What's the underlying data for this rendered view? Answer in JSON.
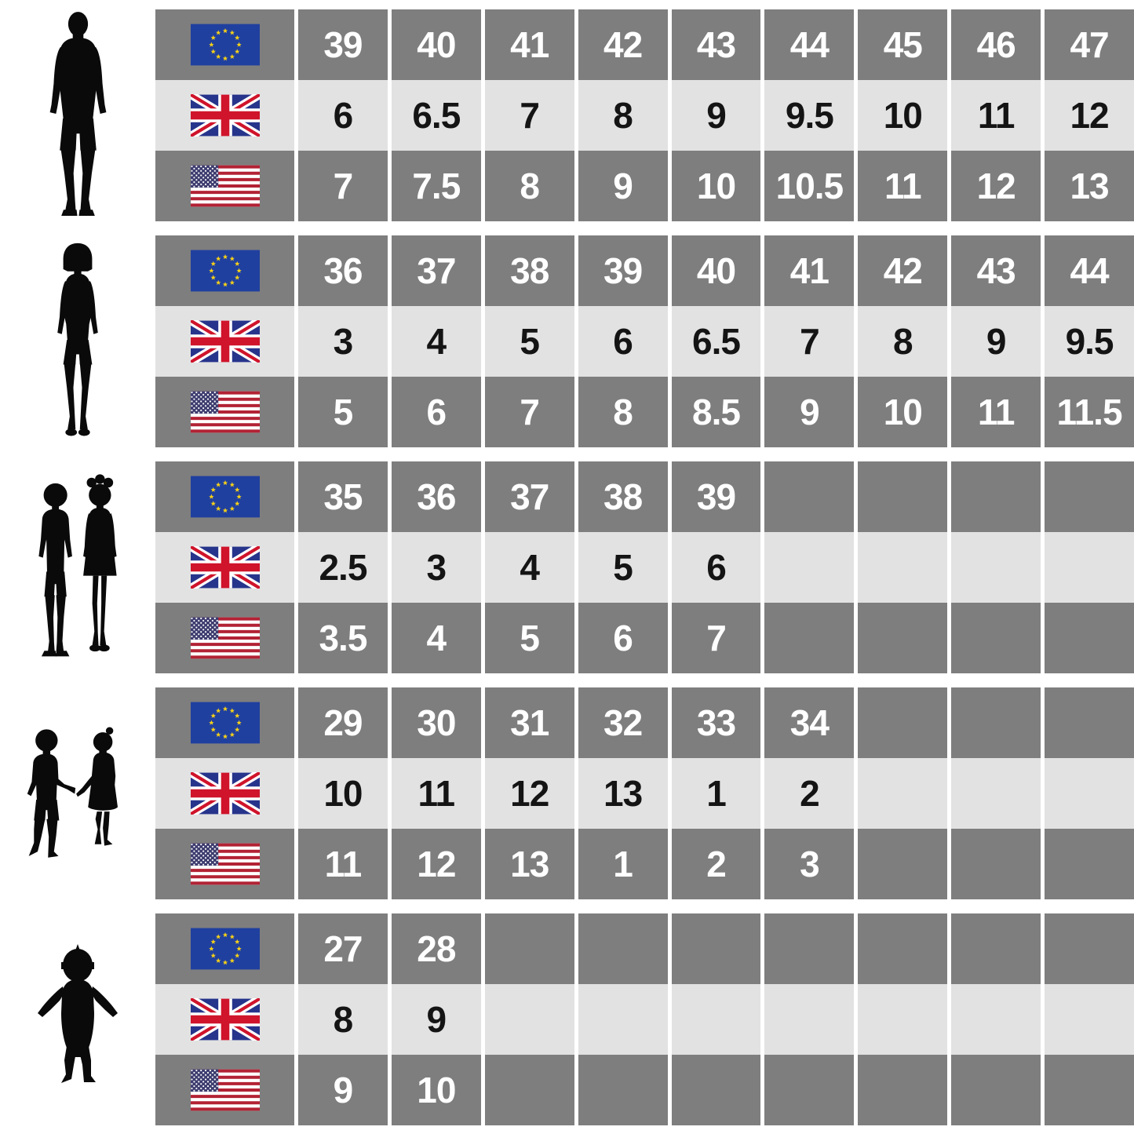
{
  "colors": {
    "background": "#ffffff",
    "cell_dark": "#7e7e7e",
    "cell_light": "#e2e2e2",
    "text_on_dark": "#ffffff",
    "text_on_light": "#141414",
    "silhouette": "#0a0a0a",
    "eu_flag_blue": "#20409f",
    "eu_flag_star_gold": "#f7d117",
    "uk_flag_blue": "#26348b",
    "uk_flag_red": "#cf142b",
    "us_flag_blue": "#3c3b6e",
    "us_flag_red": "#b22234"
  },
  "chart_data": {
    "type": "table",
    "description": "Shoe size conversion chart: EU / UK / US sizes for five age-gender groups, each group marked by a black silhouette figure and rows marked by EU, UK and US flag icons.",
    "tables": [
      {
        "group": "men",
        "figure": "man-silhouette",
        "rows": [
          {
            "region": "EU",
            "flag": "eu-flag-icon",
            "shade": "dark",
            "values": [
              "39",
              "40",
              "41",
              "42",
              "43",
              "44",
              "45",
              "46",
              "47"
            ]
          },
          {
            "region": "UK",
            "flag": "uk-flag-icon",
            "shade": "light",
            "values": [
              "6",
              "6.5",
              "7",
              "8",
              "9",
              "9.5",
              "10",
              "11",
              "12"
            ]
          },
          {
            "region": "US",
            "flag": "us-flag-icon",
            "shade": "dark",
            "values": [
              "7",
              "7.5",
              "8",
              "9",
              "10",
              "10.5",
              "11",
              "12",
              "13"
            ]
          }
        ]
      },
      {
        "group": "women",
        "figure": "woman-silhouette",
        "rows": [
          {
            "region": "EU",
            "flag": "eu-flag-icon",
            "shade": "dark",
            "values": [
              "36",
              "37",
              "38",
              "39",
              "40",
              "41",
              "42",
              "43",
              "44"
            ]
          },
          {
            "region": "UK",
            "flag": "uk-flag-icon",
            "shade": "light",
            "values": [
              "3",
              "4",
              "5",
              "6",
              "6.5",
              "7",
              "8",
              "9",
              "9.5"
            ]
          },
          {
            "region": "US",
            "flag": "us-flag-icon",
            "shade": "dark",
            "values": [
              "5",
              "6",
              "7",
              "8",
              "8.5",
              "9",
              "10",
              "11",
              "11.5"
            ]
          }
        ]
      },
      {
        "group": "kids",
        "figure": "kids-pair-silhouette",
        "rows": [
          {
            "region": "EU",
            "flag": "eu-flag-icon",
            "shade": "dark",
            "values": [
              "35",
              "36",
              "37",
              "38",
              "39",
              "",
              "",
              "",
              ""
            ]
          },
          {
            "region": "UK",
            "flag": "uk-flag-icon",
            "shade": "light",
            "values": [
              "2.5",
              "3",
              "4",
              "5",
              "6",
              "",
              "",
              "",
              ""
            ]
          },
          {
            "region": "US",
            "flag": "us-flag-icon",
            "shade": "dark",
            "values": [
              "3.5",
              "4",
              "5",
              "6",
              "7",
              "",
              "",
              "",
              ""
            ]
          }
        ]
      },
      {
        "group": "children",
        "figure": "children-holding-hands-silhouette",
        "rows": [
          {
            "region": "EU",
            "flag": "eu-flag-icon",
            "shade": "dark",
            "values": [
              "29",
              "30",
              "31",
              "32",
              "33",
              "34",
              "",
              "",
              ""
            ]
          },
          {
            "region": "UK",
            "flag": "uk-flag-icon",
            "shade": "light",
            "values": [
              "10",
              "11",
              "12",
              "13",
              "1",
              "2",
              "",
              "",
              ""
            ]
          },
          {
            "region": "US",
            "flag": "us-flag-icon",
            "shade": "dark",
            "values": [
              "11",
              "12",
              "13",
              "1",
              "2",
              "3",
              "",
              "",
              ""
            ]
          }
        ]
      },
      {
        "group": "toddler",
        "figure": "toddler-silhouette",
        "rows": [
          {
            "region": "EU",
            "flag": "eu-flag-icon",
            "shade": "dark",
            "values": [
              "27",
              "28",
              "",
              "",
              "",
              "",
              "",
              "",
              ""
            ]
          },
          {
            "region": "UK",
            "flag": "uk-flag-icon",
            "shade": "light",
            "values": [
              "8",
              "9",
              "",
              "",
              "",
              "",
              "",
              "",
              ""
            ]
          },
          {
            "region": "US",
            "flag": "us-flag-icon",
            "shade": "dark",
            "values": [
              "9",
              "10",
              "",
              "",
              "",
              "",
              "",
              "",
              ""
            ]
          }
        ]
      }
    ]
  }
}
